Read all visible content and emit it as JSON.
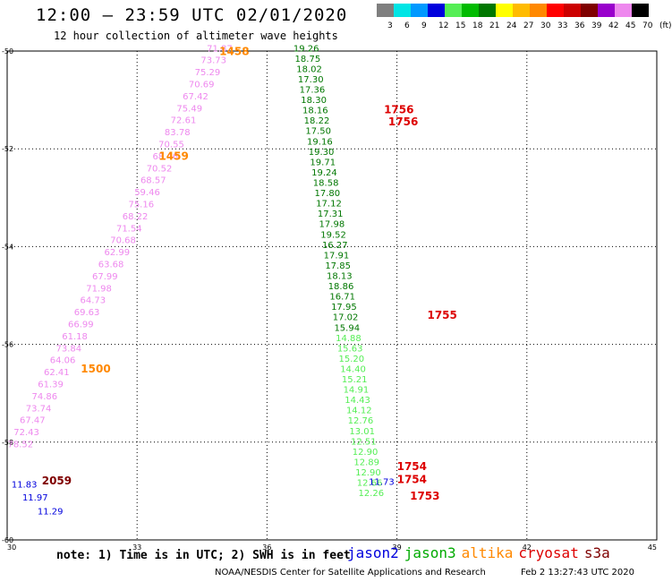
{
  "header": {
    "title": "12:00 – 23:59 UTC 02/01/2020",
    "subtitle": "12 hour collection of altimeter wave heights"
  },
  "colorbar": {
    "colors": [
      "#7f7f7f",
      "#00e5e5",
      "#0099ff",
      "#0000dd",
      "#55ee55",
      "#00bb00",
      "#007700",
      "#ffff00",
      "#ffbb00",
      "#ff8800",
      "#ff0000",
      "#cc0000",
      "#7f0000",
      "#9900cc",
      "#ee88ee",
      "#000000"
    ],
    "labels": [
      "3",
      "6",
      "9",
      "12",
      "15",
      "18",
      "21",
      "24",
      "27",
      "30",
      "33",
      "36",
      "39",
      "42",
      "45",
      "70",
      "(ft)"
    ]
  },
  "axes": {
    "x_ticks": [
      "30",
      "33",
      "36",
      "39",
      "42",
      "45"
    ],
    "y_ticks": [
      "-50",
      "-52",
      "-54",
      "-56",
      "-58",
      "-60"
    ]
  },
  "chart_data": {
    "type": "scatter",
    "xlim": [
      30,
      45
    ],
    "ylim": [
      -60,
      -50
    ],
    "units": "ft",
    "tracks": [
      {
        "satellite": "altika",
        "color": "#ee88ee",
        "values": [
          "71.87",
          "73.73",
          "75.29",
          "70.69",
          "67.42",
          "75.49",
          "72.61",
          "83.78",
          "70.55",
          "68.46",
          "70.52",
          "68.57",
          "59.46",
          "75.16",
          "68.22",
          "71.54",
          "70.68",
          "62.99",
          "63.68",
          "67.99",
          "71.98",
          "64.73",
          "69.63",
          "66.99",
          "61.18",
          "73.84",
          "64.06",
          "62.41",
          "61.39",
          "74.86",
          "73.74",
          "67.47",
          "72.43",
          "78.52"
        ]
      },
      {
        "satellite": "jason3",
        "color_dark": "#007700",
        "color_light": "#55ee55",
        "values": [
          "19.26",
          "18.75",
          "18.02",
          "17.30",
          "17.36",
          "18.30",
          "18.16",
          "18.22",
          "17.50",
          "19.16",
          "19.30",
          "19.71",
          "19.24",
          "18.58",
          "17.80",
          "17.12",
          "17.31",
          "17.98",
          "19.52",
          "16.27",
          "17.91",
          "17.85",
          "18.13",
          "18.86",
          "16.71",
          "17.95",
          "17.02",
          "15.94",
          "14.88",
          "15.63",
          "15.20",
          "14.40",
          "15.21",
          "14.91",
          "14.43",
          "14.12",
          "12.76",
          "13.01",
          "12.51",
          "12.90",
          "12.89",
          "12.90",
          "12.66",
          "12.26"
        ]
      },
      {
        "satellite": "jason2",
        "color": "#0000dd",
        "values": [
          "11.83",
          "11.97",
          "11.29",
          "11.73"
        ]
      }
    ],
    "time_labels": [
      {
        "time": "1458",
        "satellite": "altika",
        "color": "#ff8800"
      },
      {
        "time": "1459",
        "satellite": "altika",
        "color": "#ff8800"
      },
      {
        "time": "1500",
        "satellite": "altika",
        "color": "#ff8800"
      },
      {
        "time": "1756",
        "satellite": "cryosat",
        "color": "#dd0000"
      },
      {
        "time": "1756",
        "satellite": "cryosat",
        "color": "#dd0000"
      },
      {
        "time": "1755",
        "satellite": "cryosat",
        "color": "#dd0000"
      },
      {
        "time": "1754",
        "satellite": "cryosat",
        "color": "#dd0000"
      },
      {
        "time": "1754",
        "satellite": "cryosat",
        "color": "#dd0000"
      },
      {
        "time": "1753",
        "satellite": "cryosat",
        "color": "#dd0000"
      },
      {
        "time": "2059",
        "satellite": "s3a",
        "color": "#7f0000"
      }
    ]
  },
  "note": "note: 1) Time is in UTC; 2) SWH is in feet",
  "legend": [
    {
      "label": "jason2",
      "color": "#0000dd"
    },
    {
      "label": "jason3",
      "color": "#00aa00"
    },
    {
      "label": "altika",
      "color": "#ff8800"
    },
    {
      "label": "cryosat",
      "color": "#dd0000"
    },
    {
      "label": "s3a",
      "color": "#7f0000"
    }
  ],
  "footer": {
    "credit": "NOAA/NESDIS Center for Satellite Applications and Research",
    "timestamp": "Feb  2 13:27:43 UTC 2020"
  }
}
